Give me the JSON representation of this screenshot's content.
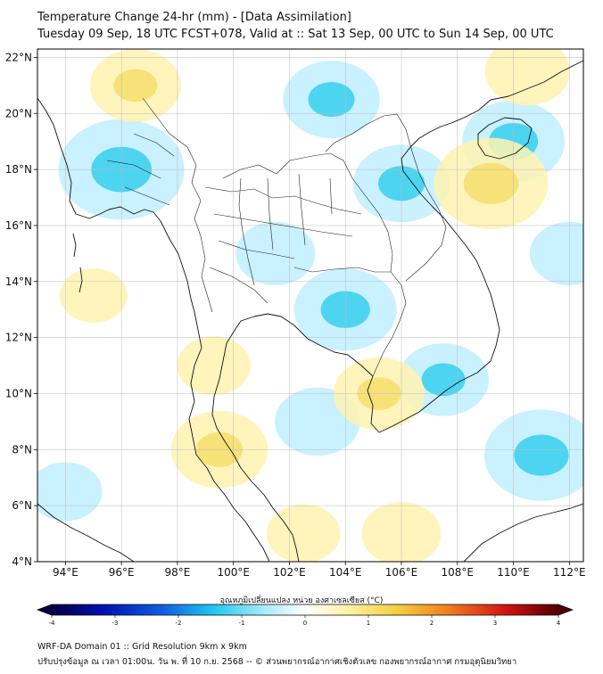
{
  "header": {
    "title_line1": "Temperature Change 24-hr (mm) - [Data Assimilation]",
    "title_line2": "Tuesday 09 Sep, 18 UTC FCST+078, Valid at :: Sat 13 Sep, 00 UTC to Sun 14 Sep, 00 UTC"
  },
  "map": {
    "lon_labels": [
      "94°E",
      "96°E",
      "98°E",
      "100°E",
      "102°E",
      "104°E",
      "106°E",
      "108°E",
      "110°E",
      "112°E"
    ],
    "lat_labels": [
      "22°N",
      "20°N",
      "18°N",
      "16°N",
      "14°N",
      "12°N",
      "10°N",
      "8°N",
      "6°N",
      "4°N"
    ],
    "lon_values": [
      94,
      96,
      98,
      100,
      102,
      104,
      106,
      108,
      110,
      112
    ],
    "lat_values": [
      22,
      20,
      18,
      16,
      14,
      12,
      10,
      8,
      6,
      4
    ],
    "extent": {
      "lon_min": 93.0,
      "lon_max": 112.5,
      "lat_min": 4.0,
      "lat_max": 22.3
    },
    "anomalies": [
      {
        "lon": 96.0,
        "lat": 18.0,
        "value": -1.4
      },
      {
        "lon": 103.5,
        "lat": 20.5,
        "value": -0.9
      },
      {
        "lon": 106.0,
        "lat": 17.5,
        "value": -0.9
      },
      {
        "lon": 104.0,
        "lat": 13.0,
        "value": -1.0
      },
      {
        "lon": 101.5,
        "lat": 15.0,
        "value": -0.6
      },
      {
        "lon": 110.0,
        "lat": 19.0,
        "value": -1.0
      },
      {
        "lon": 109.2,
        "lat": 17.5,
        "value": 1.2
      },
      {
        "lon": 111.0,
        "lat": 7.8,
        "value": -1.2
      },
      {
        "lon": 107.5,
        "lat": 10.5,
        "value": -0.8
      },
      {
        "lon": 103.0,
        "lat": 9.0,
        "value": -0.7
      },
      {
        "lon": 99.5,
        "lat": 8.0,
        "value": 0.9
      },
      {
        "lon": 99.3,
        "lat": 11.0,
        "value": 0.5
      },
      {
        "lon": 105.2,
        "lat": 10.0,
        "value": 0.8
      },
      {
        "lon": 96.5,
        "lat": 21.0,
        "value": 0.8
      },
      {
        "lon": 110.5,
        "lat": 21.5,
        "value": 0.7
      },
      {
        "lon": 106.0,
        "lat": 5.0,
        "value": 0.6
      },
      {
        "lon": 102.5,
        "lat": 5.0,
        "value": 0.5
      },
      {
        "lon": 95.0,
        "lat": 13.5,
        "value": 0.4
      },
      {
        "lon": 94.0,
        "lat": 6.5,
        "value": -0.5
      },
      {
        "lon": 112.0,
        "lat": 15.0,
        "value": -0.6
      }
    ]
  },
  "colorbar": {
    "label": "อุณหภูมิเปลี่ยนแปลง หน่วย องศาเซลเซียส (°C)",
    "ticks": [
      "-4",
      "-3",
      "-2",
      "-1",
      "0",
      "1",
      "2",
      "3",
      "4"
    ],
    "tick_values": [
      -4,
      -3,
      -2,
      -1,
      0,
      1,
      2,
      3,
      4
    ],
    "range": [
      -4,
      4
    ]
  },
  "footer": {
    "line1": "WRF-DA Domain 01 :: Grid Resolution 9km x 9km",
    "line2": "ปรับปรุงข้อมูล ณ เวลา 01:00น. วัน พ. ที่ 10 ก.ย. 2568 -- © ส่วนพยากรณ์อากาศเชิงตัวเลข กองพยากรณ์อากาศ กรมอุตุนิยมวิทยา"
  },
  "colors": {
    "coast": "#111111",
    "grid": "#bbbbbb",
    "neg_light": "#bfefff",
    "neg_mid": "#3fd0f0",
    "pos_light": "#fff3b0",
    "pos_mid": "#f5e070",
    "neutral": "#ffffff"
  }
}
